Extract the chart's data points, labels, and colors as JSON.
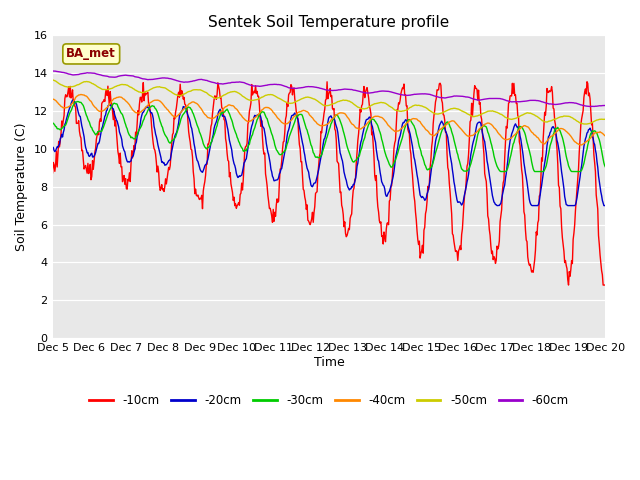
{
  "title": "Sentek Soil Temperature profile",
  "xlabel": "Time",
  "ylabel": "Soil Temperature (C)",
  "ylim": [
    0,
    16
  ],
  "yticks": [
    0,
    2,
    4,
    6,
    8,
    10,
    12,
    14,
    16
  ],
  "xlabels": [
    "Dec 5",
    "Dec 6",
    "Dec 7",
    "Dec 8",
    "Dec 9",
    "Dec 10",
    "Dec 11",
    "Dec 12",
    "Dec 13",
    "Dec 14",
    "Dec 15",
    "Dec 16",
    "Dec 17",
    "Dec 18",
    "Dec 19",
    "Dec 20"
  ],
  "legend_labels": [
    "-10cm",
    "-20cm",
    "-30cm",
    "-40cm",
    "-50cm",
    "-60cm"
  ],
  "colors": [
    "#ff0000",
    "#0000cc",
    "#00cc00",
    "#ff8800",
    "#cccc00",
    "#9900cc"
  ],
  "annotation_text": "BA_met",
  "plot_bg_color": "#e8e8e8",
  "fig_bg_color": "#ffffff",
  "linewidth": 1.0,
  "n_points": 720
}
